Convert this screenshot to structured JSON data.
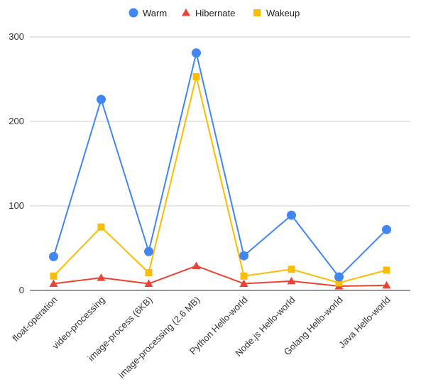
{
  "chart_data": {
    "type": "line",
    "title": "",
    "xlabel": "",
    "ylabel": "",
    "ylim": [
      0,
      300
    ],
    "yticks": [
      0,
      100,
      200,
      300
    ],
    "grid": true,
    "legend_position": "top",
    "categories": [
      "float-operation",
      "video-processing",
      "image-process (6KB)",
      "image-processing (2.6 MB)",
      "Python Hello-world",
      "Node.js Hello-world",
      "Golang Hello-world",
      "Java Hello-world"
    ],
    "series": [
      {
        "name": "Warm",
        "color": "#4285f4",
        "marker": "circle",
        "values": [
          40,
          226,
          46,
          281,
          41,
          89,
          16,
          72
        ]
      },
      {
        "name": "Hibernate",
        "color": "#ea4335",
        "marker": "triangle",
        "values": [
          8,
          15,
          8,
          29,
          8,
          11,
          5,
          6
        ]
      },
      {
        "name": "Wakeup",
        "color": "#fbbc04",
        "marker": "square",
        "values": [
          17,
          75,
          21,
          253,
          17,
          25,
          9,
          24
        ]
      }
    ]
  }
}
